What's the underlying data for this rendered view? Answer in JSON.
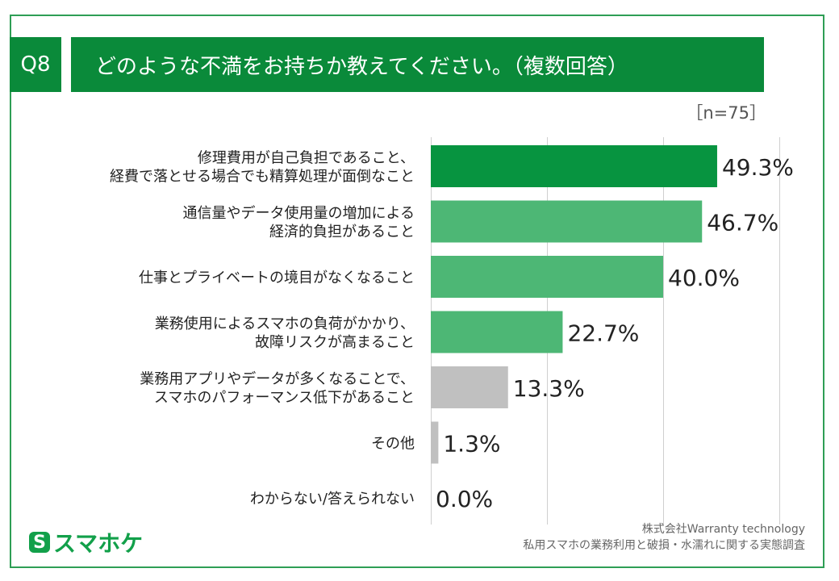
{
  "header": {
    "question_id": "Q8",
    "title": "どのような不満をお持ちか教えてください。（複数回答）",
    "sample_size": "［n=75］"
  },
  "colors": {
    "brand": "#0a8a3a",
    "bar_top": "#079440",
    "bar_green": "#4db775",
    "bar_gray": "#c0c0c0"
  },
  "chart_data": {
    "type": "bar",
    "orientation": "horizontal",
    "title": "どのような不満をお持ちか教えてください。（複数回答）",
    "xlim": [
      0,
      100
    ],
    "grid": true,
    "categories": [
      [
        "修理費用が自己負担であること、",
        "経費で落とせる場合でも精算処理が面倒なこと"
      ],
      [
        "通信量やデータ使用量の増加による",
        "経済的負担があること"
      ],
      [
        "仕事とプライベートの境目がなくなること"
      ],
      [
        "業務使用によるスマホの負荷がかかり、",
        "故障リスクが高まること"
      ],
      [
        "業務用アプリやデータが多くなることで、",
        "スマホのパフォーマンス低下があること"
      ],
      [
        "その他"
      ],
      [
        "わからない/答えられない"
      ]
    ],
    "values": [
      49.3,
      46.7,
      40.0,
      22.7,
      13.3,
      1.3,
      0.0
    ],
    "value_labels": [
      "49.3%",
      "46.7%",
      "40.0%",
      "22.7%",
      "13.3%",
      "1.3%",
      "0.0%"
    ],
    "bar_color_keys": [
      "bar_top",
      "bar_green",
      "bar_green",
      "bar_green",
      "bar_gray",
      "bar_gray",
      "bar_gray"
    ]
  },
  "footer": {
    "logo_mark": "S",
    "logo_text": "スマホケ",
    "source_company": "株式会社Warranty technology",
    "source_survey": "私用スマホの業務利用と破損・水濡れに関する実態調査"
  }
}
